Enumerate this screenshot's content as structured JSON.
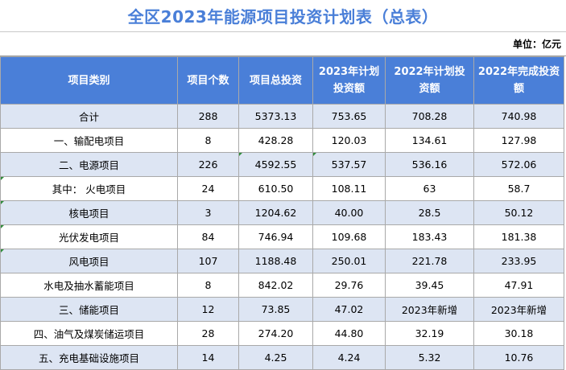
{
  "title": "全区2023年能源项目投资计划表（总表）",
  "unit": "单位：亿元",
  "headers": [
    "项目类别",
    "项目个数",
    "项目总投资",
    "2023年计划投资额",
    "2022年计划投资额",
    "2022年完成投资额"
  ],
  "rows": [
    [
      "合计",
      "288",
      "5373.13",
      "753.65",
      "708.28",
      "740.98"
    ],
    [
      "一、输配电项目",
      "8",
      "428.28",
      "120.03",
      "134.61",
      "127.98"
    ],
    [
      "二、电源项目",
      "226",
      "4592.55",
      "537.57",
      "536.16",
      "572.06"
    ],
    [
      "其中：  火电项目",
      "24",
      "610.50",
      "108.11",
      "63",
      "58.7"
    ],
    [
      "核电项目",
      "3",
      "1204.62",
      "40.00",
      "28.5",
      "50.12"
    ],
    [
      "光伏发电项目",
      "84",
      "746.94",
      "109.68",
      "183.43",
      "181.38"
    ],
    [
      "风电项目",
      "107",
      "1188.48",
      "250.01",
      "221.78",
      "233.95"
    ],
    [
      "水电及抽水蓄能项目",
      "8",
      "842.02",
      "29.76",
      "39.45",
      "47.91"
    ],
    [
      "三、储能项目",
      "12",
      "73.85",
      "47.02",
      "2023年新增",
      "2023年新增"
    ],
    [
      "四、油气及煤炭储运项目",
      "28",
      "274.20",
      "44.80",
      "32.19",
      "30.18"
    ],
    [
      "五、充电基础设施项目",
      "14",
      "4.25",
      "4.24",
      "5.32",
      "10.76"
    ]
  ],
  "colors": {
    "header_bg": "#4a7fd8",
    "band_bg": "#dde5f3",
    "title_color": "#4a7fd8"
  }
}
